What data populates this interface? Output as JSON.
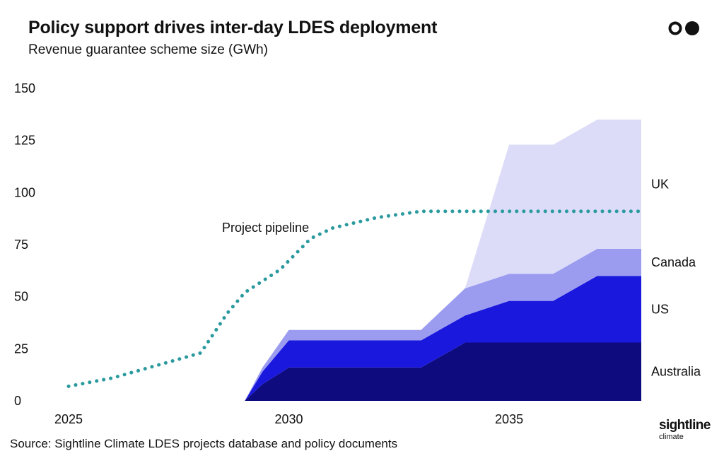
{
  "header": {
    "title": "Policy support drives inter-day LDES deployment",
    "subtitle": "Revenue guarantee scheme size (GWh)"
  },
  "footer": {
    "source": "Source: Sightline Climate LDES projects database and policy documents",
    "brand_name": "sightline",
    "brand_sub": "climate"
  },
  "colors": {
    "australia": "#0e0b7e",
    "us": "#1a18dd",
    "canada": "#9b9cf0",
    "uk": "#dcdcf9",
    "pipeline": "#2a9a9f"
  },
  "icons": [
    "logo-circles-icon"
  ],
  "chart_data": {
    "type": "area",
    "title": "Policy support drives inter-day LDES deployment",
    "subtitle": "Revenue guarantee scheme size (GWh)",
    "xlabel": "",
    "ylabel": "",
    "xlim": [
      2025,
      2038
    ],
    "ylim": [
      0,
      150
    ],
    "x_ticks": [
      "2025",
      "2030",
      "2035"
    ],
    "y_ticks": [
      "0",
      "25",
      "50",
      "75",
      "100",
      "125",
      "150"
    ],
    "grid": false,
    "stacked": true,
    "x": [
      2029,
      2029.4,
      2030,
      2031,
      2032,
      2033,
      2034,
      2035,
      2036,
      2037,
      2038
    ],
    "series": [
      {
        "name": "Australia",
        "values": [
          0,
          8,
          16,
          16,
          16,
          16,
          28,
          28,
          28,
          28,
          28
        ]
      },
      {
        "name": "US",
        "values": [
          0,
          6,
          13,
          13,
          13,
          13,
          13,
          20,
          20,
          32,
          32
        ]
      },
      {
        "name": "Canada",
        "values": [
          0,
          2,
          5,
          5,
          5,
          5,
          13,
          13,
          13,
          13,
          13
        ]
      },
      {
        "name": "UK",
        "values": [
          0,
          0,
          0,
          0,
          0,
          0,
          0,
          62,
          62,
          62,
          62
        ]
      }
    ],
    "pipeline": {
      "name": "Project pipeline",
      "x": [
        2025,
        2026,
        2027,
        2028,
        2028.6,
        2029,
        2029.8,
        2030.5,
        2031,
        2032,
        2033,
        2034,
        2035,
        2036,
        2037,
        2038
      ],
      "values": [
        7,
        11,
        17,
        23,
        42,
        52,
        63,
        78,
        83,
        88,
        91,
        91,
        91,
        91,
        91,
        91
      ]
    },
    "legend": "right-side inline labels"
  }
}
